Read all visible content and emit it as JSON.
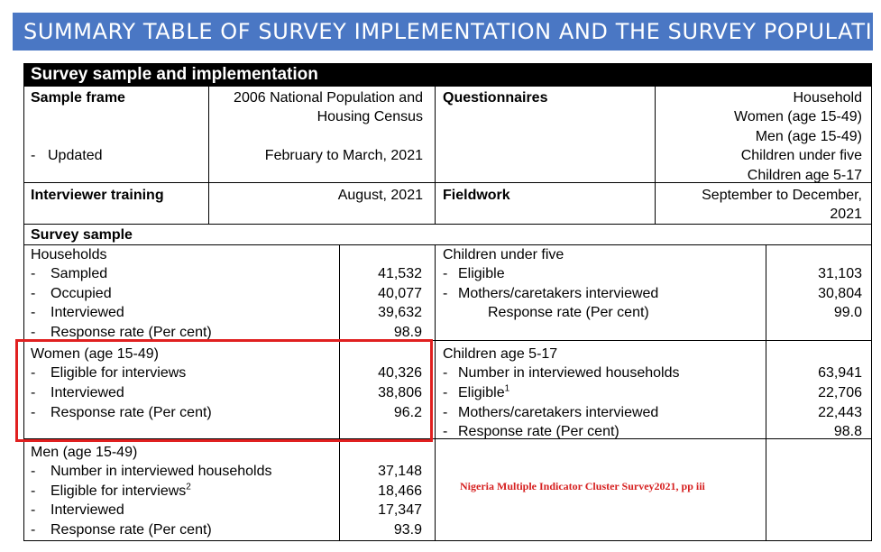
{
  "banner": {
    "title": "SUMMARY TABLE OF SURVEY IMPLEMENTATION AND THE SURVEY POPULATION"
  },
  "section_title": "Survey sample and implementation",
  "sample_frame": {
    "label": "Sample frame",
    "value_line1": "2006 National Population and",
    "value_line2": "Housing Census",
    "updated_label": "Updated",
    "updated_value": "February to March, 2021"
  },
  "questionnaires": {
    "label": "Questionnaires",
    "items": [
      "Household",
      "Women (age 15-49)",
      "Men (age 15-49)",
      "Children under five",
      "Children age 5-17"
    ]
  },
  "interviewer_training": {
    "label": "Interviewer training",
    "value": "August, 2021"
  },
  "fieldwork": {
    "label": "Fieldwork",
    "value_line1": "September to December,",
    "value_line2": "2021"
  },
  "survey_sample": {
    "label": "Survey sample"
  },
  "households": {
    "label": "Households",
    "rows": [
      {
        "label": "Sampled",
        "value": "41,532"
      },
      {
        "label": "Occupied",
        "value": "40,077"
      },
      {
        "label": "Interviewed",
        "value": "39,632"
      },
      {
        "label": "Response rate (Per cent)",
        "value": "98.9"
      }
    ]
  },
  "women": {
    "label": "Women (age 15-49)",
    "rows": [
      {
        "label": "Eligible for interviews",
        "value": "40,326"
      },
      {
        "label": "Interviewed",
        "value": "38,806"
      },
      {
        "label": "Response rate (Per cent)",
        "value": "96.2"
      }
    ]
  },
  "men": {
    "label": "Men (age 15-49)",
    "rows": [
      {
        "label": "Number in interviewed households",
        "value": "37,148"
      },
      {
        "label": "Eligible for interviews",
        "sup": "2",
        "value": "18,466"
      },
      {
        "label": "Interviewed",
        "value": "17,347"
      },
      {
        "label": "Response rate (Per cent)",
        "value": "93.9"
      }
    ]
  },
  "children_under_five": {
    "label": "Children under five",
    "rows": [
      {
        "label": "Eligible",
        "value": "31,103"
      },
      {
        "label": "Mothers/caretakers interviewed",
        "value": "30,804"
      },
      {
        "label": "Response rate (Per cent)",
        "value": "99.0"
      }
    ]
  },
  "children_5_17": {
    "label": "Children age 5-17",
    "rows": [
      {
        "label": "Number in interviewed households",
        "value": "63,941"
      },
      {
        "label": "Eligible",
        "sup": "1",
        "value": "22,706"
      },
      {
        "label": "Mothers/caretakers interviewed",
        "value": "22,443"
      },
      {
        "label": "Response rate (Per cent)",
        "value": "98.8"
      }
    ]
  },
  "dash": "-",
  "source_note": "Nigeria Multiple Indicator Cluster Survey2021, pp iii",
  "colors": {
    "banner": "#4a77c4",
    "highlight": "#e02020",
    "note": "#d62020"
  }
}
